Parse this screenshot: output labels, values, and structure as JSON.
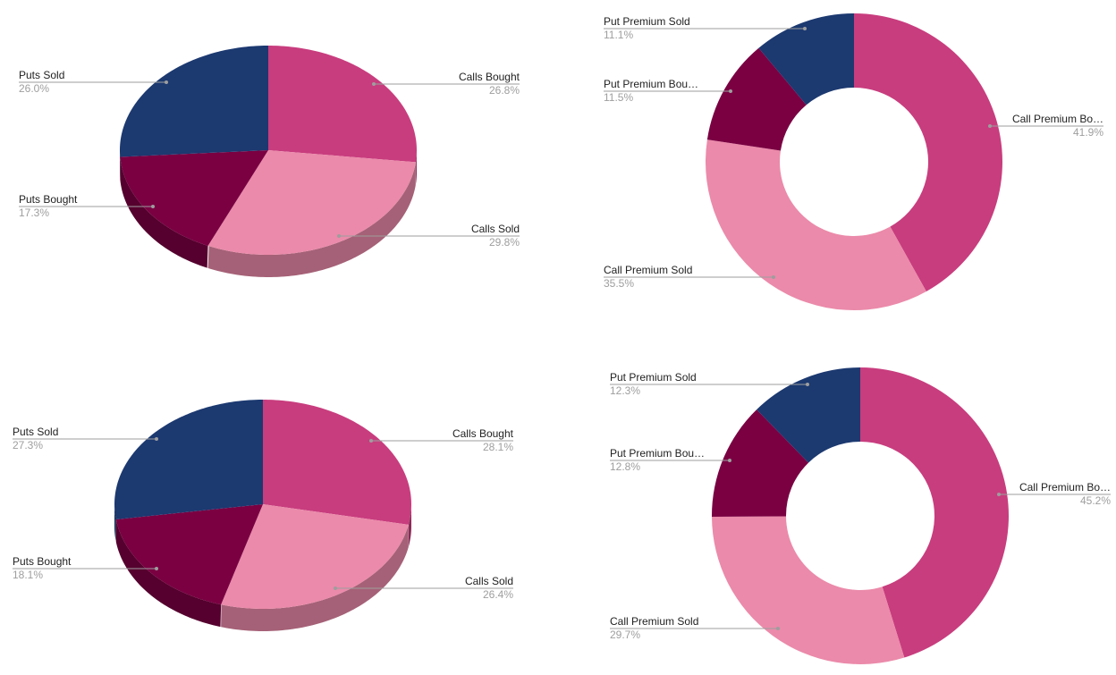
{
  "colors": {
    "calls_bought": "#c83d7e",
    "calls_sold": "#eb8aaa",
    "puts_bought": "#7a0042",
    "puts_sold": "#1c3970",
    "label_text": "#222222",
    "percent_text": "#9e9e9e",
    "leader_line": "#9e9e9e"
  },
  "chart_data": [
    {
      "type": "pie",
      "style": "3d",
      "slices": [
        {
          "name": "Calls Bought",
          "value": 26.8,
          "label": "26.8%",
          "color": "#c83d7e"
        },
        {
          "name": "Calls Sold",
          "value": 29.8,
          "label": "29.8%",
          "color": "#eb8aaa"
        },
        {
          "name": "Puts Bought",
          "value": 17.3,
          "label": "17.3%",
          "color": "#7a0042"
        },
        {
          "name": "Puts Sold",
          "value": 26.0,
          "label": "26.0%",
          "color": "#1c3970"
        }
      ],
      "legend": "labeled leaders"
    },
    {
      "type": "pie",
      "style": "donut",
      "slices": [
        {
          "name": "Call Premium Bo…",
          "value": 41.9,
          "label": "41.9%",
          "color": "#c83d7e"
        },
        {
          "name": "Call Premium Sold",
          "value": 35.5,
          "label": "35.5%",
          "color": "#eb8aaa"
        },
        {
          "name": "Put Premium Bou…",
          "value": 11.5,
          "label": "11.5%",
          "color": "#7a0042"
        },
        {
          "name": "Put Premium Sold",
          "value": 11.1,
          "label": "11.1%",
          "color": "#1c3970"
        }
      ],
      "legend": "labeled leaders"
    },
    {
      "type": "pie",
      "style": "3d",
      "slices": [
        {
          "name": "Calls Bought",
          "value": 28.1,
          "label": "28.1%",
          "color": "#c83d7e"
        },
        {
          "name": "Calls Sold",
          "value": 26.4,
          "label": "26.4%",
          "color": "#eb8aaa"
        },
        {
          "name": "Puts Bought",
          "value": 18.1,
          "label": "18.1%",
          "color": "#7a0042"
        },
        {
          "name": "Puts Sold",
          "value": 27.3,
          "label": "27.3%",
          "color": "#1c3970"
        }
      ],
      "legend": "labeled leaders"
    },
    {
      "type": "pie",
      "style": "donut",
      "slices": [
        {
          "name": "Call Premium Bo…",
          "value": 45.2,
          "label": "45.2%",
          "color": "#c83d7e"
        },
        {
          "name": "Call Premium Sold",
          "value": 29.7,
          "label": "29.7%",
          "color": "#eb8aaa"
        },
        {
          "name": "Put Premium Bou…",
          "value": 12.8,
          "label": "12.8%",
          "color": "#7a0042"
        },
        {
          "name": "Put Premium Sold",
          "value": 12.3,
          "label": "12.3%",
          "color": "#1c3970"
        }
      ],
      "legend": "labeled leaders"
    }
  ]
}
